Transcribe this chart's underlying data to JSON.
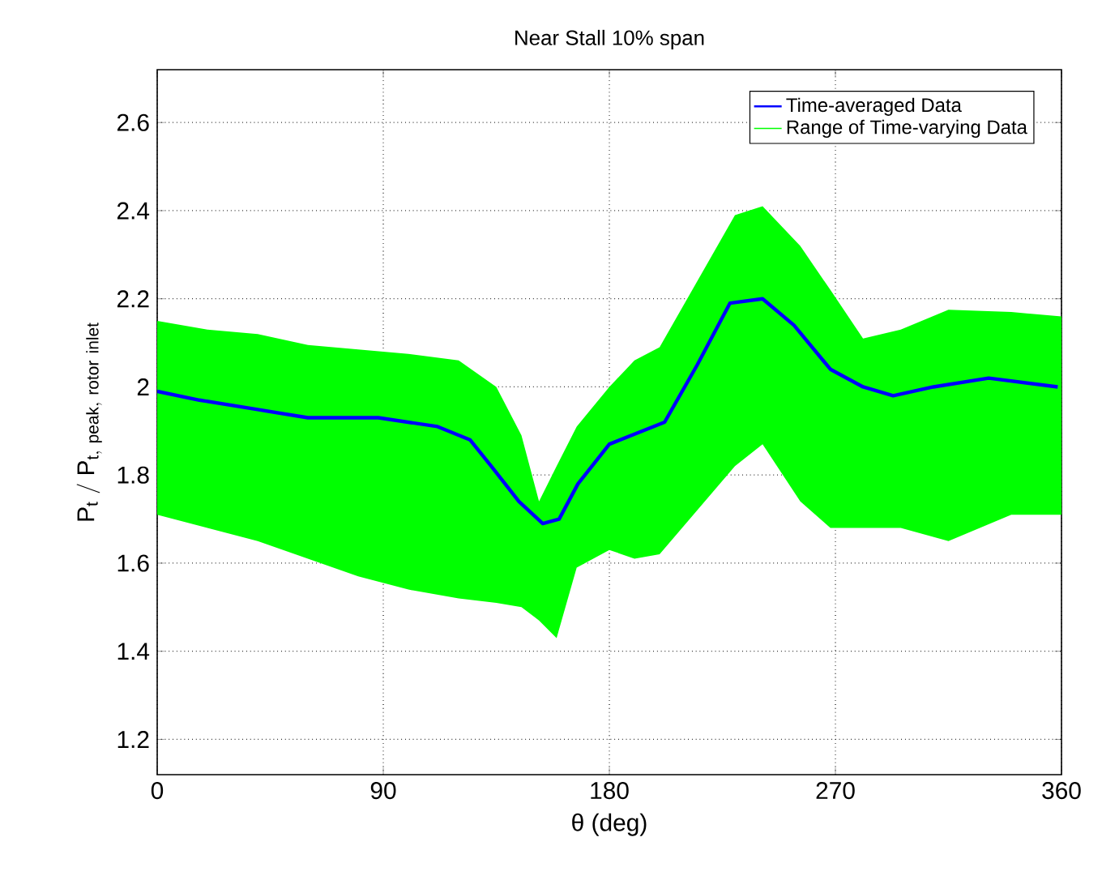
{
  "chart_data": {
    "type": "line",
    "title": "Near Stall 10% span",
    "xlabel": "θ (deg)",
    "ylabel": "\\mathrm{P}_{\\mathrm{t}}\\ /\\ \\mathrm{P}_{\\mathrm{t,\\ peak,\\ rotor\\ inlet}}",
    "xlim": [
      0,
      360
    ],
    "xticks": [
      0,
      90,
      180,
      270,
      360
    ],
    "ylim": [
      1.12,
      2.72
    ],
    "yticks": [
      1.2,
      1.4,
      1.6,
      1.8,
      2,
      2.2,
      2.4,
      2.6
    ],
    "grid": true,
    "legend": "top right",
    "series": [
      {
        "name": "Time-averaged Data",
        "color": "#0000ff",
        "x": [
          0,
          16.8,
          38.5,
          60,
          88,
          111.6,
          124.5,
          133,
          144,
          153.5,
          160,
          167.5,
          180,
          202,
          215,
          228,
          241,
          253.5,
          268,
          281,
          293,
          309,
          331,
          358.5
        ],
        "values": [
          1.99,
          1.97,
          1.95,
          1.93,
          1.93,
          1.91,
          1.88,
          1.82,
          1.74,
          1.69,
          1.7,
          1.78,
          1.87,
          1.92,
          2.05,
          2.19,
          2.2,
          2.14,
          2.04,
          2.0,
          1.98,
          2.0,
          2.02,
          2.0
        ]
      },
      {
        "name": "Range of Time-varying Data",
        "type": "area",
        "color": "#00ff00",
        "x": [
          0,
          20,
          40,
          60,
          80,
          100,
          120,
          135,
          145,
          152,
          159,
          167,
          180,
          190,
          200,
          215,
          230,
          241,
          256,
          268,
          281,
          296,
          315,
          340,
          360
        ],
        "values": [
          null,
          null,
          null,
          null,
          null,
          null,
          null,
          null,
          null,
          null,
          null,
          null,
          null,
          null,
          null,
          null,
          null,
          null,
          null,
          null,
          null,
          null,
          null,
          null,
          null
        ],
        "upper": [
          2.15,
          2.13,
          2.12,
          2.095,
          2.085,
          2.075,
          2.06,
          2.0,
          1.89,
          1.74,
          1.82,
          1.91,
          2.0,
          2.06,
          2.09,
          2.24,
          2.39,
          2.41,
          2.32,
          2.22,
          2.11,
          2.13,
          2.175,
          2.17,
          2.16
        ],
        "lower": [
          1.71,
          1.68,
          1.65,
          1.61,
          1.57,
          1.54,
          1.52,
          1.51,
          1.5,
          1.47,
          1.43,
          1.59,
          1.63,
          1.61,
          1.62,
          1.72,
          1.82,
          1.87,
          1.74,
          1.68,
          1.68,
          1.68,
          1.65,
          1.71,
          1.71
        ]
      }
    ]
  }
}
